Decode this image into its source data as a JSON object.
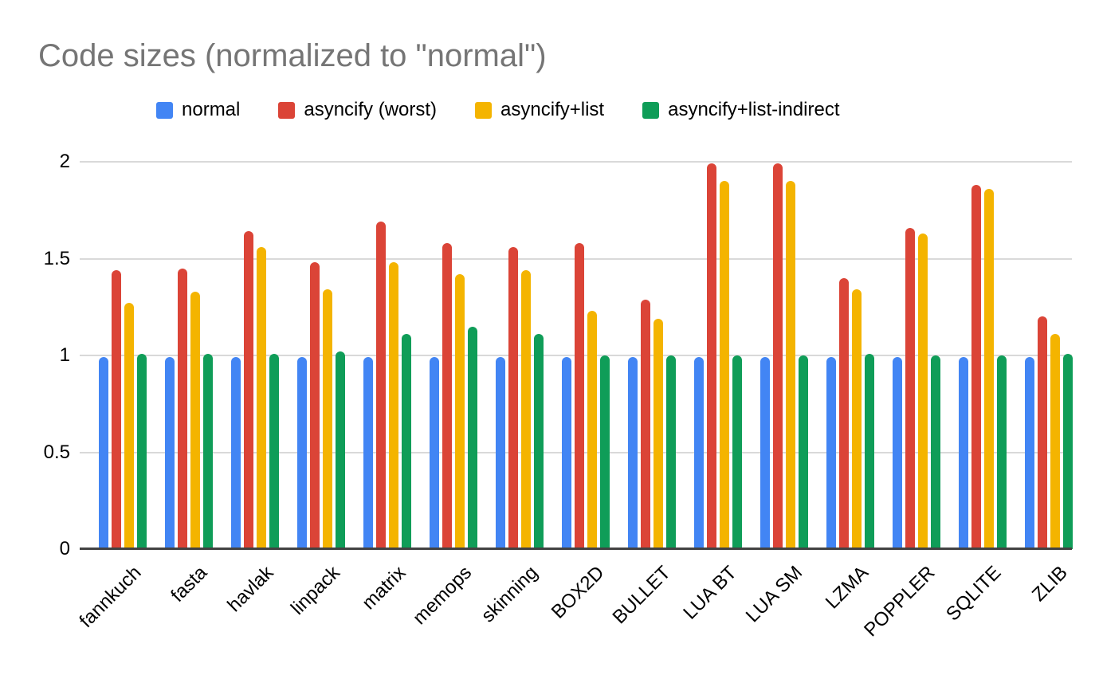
{
  "title": "Code sizes (normalized to \"normal\")",
  "colors": {
    "title_text": "#757575",
    "axis_text": "#000000",
    "grid_line": "#d9d9d9",
    "axis_line": "#424242",
    "background": "#ffffff"
  },
  "y_axis": {
    "ticks": [
      "2",
      "1.5",
      "1",
      "0.5",
      "0"
    ],
    "tick_values": [
      2,
      1.5,
      1,
      0.5,
      0
    ]
  },
  "chart_data": {
    "type": "bar",
    "title": "Code sizes (normalized to \"normal\")",
    "xlabel": "",
    "ylabel": "",
    "ylim": [
      0,
      2
    ],
    "grid": true,
    "legend_position": "top",
    "categories": [
      "fannkuch",
      "fasta",
      "havlak",
      "linpack",
      "matrix",
      "memops",
      "skinning",
      "BOX2D",
      "BULLET",
      "LUA BT",
      "LUA SM",
      "LZMA",
      "POPPLER",
      "SQLITE",
      "ZLIB"
    ],
    "series": [
      {
        "name": "normal",
        "color": "#4285F4",
        "values": [
          0.99,
          0.99,
          0.99,
          0.99,
          0.99,
          0.99,
          0.99,
          0.99,
          0.99,
          0.99,
          0.99,
          0.99,
          0.99,
          0.99,
          0.99
        ]
      },
      {
        "name": "asyncify (worst)",
        "color": "#DB4437",
        "values": [
          1.44,
          1.45,
          1.64,
          1.48,
          1.69,
          1.58,
          1.56,
          1.58,
          1.29,
          1.99,
          1.99,
          1.4,
          1.66,
          1.88,
          1.2
        ]
      },
      {
        "name": "asyncify+list",
        "color": "#F4B400",
        "values": [
          1.27,
          1.33,
          1.56,
          1.34,
          1.48,
          1.42,
          1.44,
          1.23,
          1.19,
          1.9,
          1.9,
          1.34,
          1.63,
          1.86,
          1.11
        ]
      },
      {
        "name": "asyncify+list-indirect",
        "color": "#0F9D58",
        "values": [
          1.01,
          1.01,
          1.01,
          1.02,
          1.11,
          1.15,
          1.11,
          1.0,
          1.0,
          1.0,
          1.0,
          1.01,
          1.0,
          1.0,
          1.01
        ]
      }
    ]
  }
}
